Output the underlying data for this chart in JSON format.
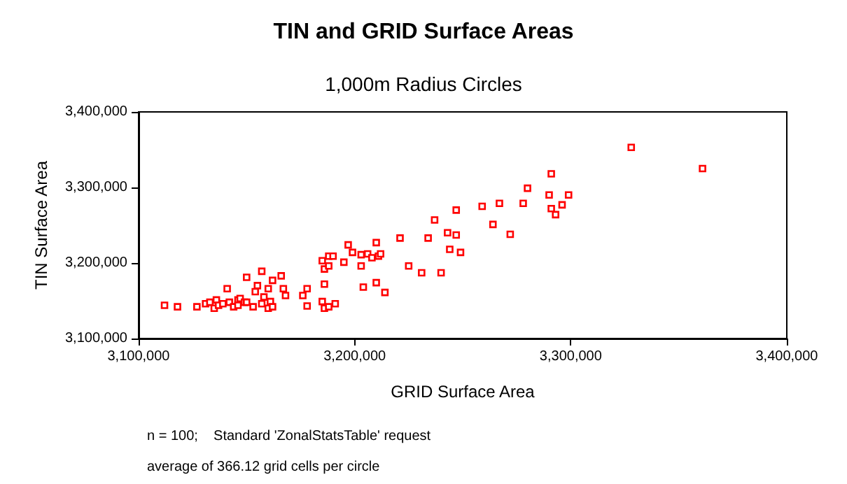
{
  "chart_data": {
    "type": "scatter",
    "title": "TIN and GRID Surface Areas",
    "subtitle": "1,000m Radius Circles",
    "xlabel": "GRID Surface Area",
    "ylabel": "TIN Surface Area",
    "annotations": [
      "n = 100;    Standard 'ZonalStatsTable' request",
      "average of 366.12 grid cells per circle"
    ],
    "xlim": [
      3100000,
      3400000
    ],
    "ylim": [
      3100000,
      3400000
    ],
    "xticks": [
      {
        "value": 3100000,
        "label": "3,100,000"
      },
      {
        "value": 3200000,
        "label": "3,200,000"
      },
      {
        "value": 3300000,
        "label": "3,300,000"
      },
      {
        "value": 3400000,
        "label": "3,400,000"
      }
    ],
    "yticks": [
      {
        "value": 3100000,
        "label": "3,100,000"
      },
      {
        "value": 3200000,
        "label": "3,200,000"
      },
      {
        "value": 3300000,
        "label": "3,300,000"
      },
      {
        "value": 3400000,
        "label": "3,400,000"
      }
    ],
    "grid": false,
    "marker": "square",
    "series": [
      {
        "color": "#ff0000",
        "x": [
          3112000,
          3118000,
          3127000,
          3131000,
          3133000,
          3135000,
          3136000,
          3137000,
          3139000,
          3141000,
          3142000,
          3144000,
          3146000,
          3146000,
          3147000,
          3149000,
          3150000,
          3150000,
          3153000,
          3154000,
          3155000,
          3157000,
          3157000,
          3158000,
          3160000,
          3161000,
          3160000,
          3162000,
          3162000,
          3166000,
          3167000,
          3168000,
          3176000,
          3178000,
          3178000,
          3185000,
          3186000,
          3188000,
          3191000,
          3186000,
          3185000,
          3186000,
          3188000,
          3188000,
          3190000,
          3195000,
          3197000,
          3199000,
          3203000,
          3203000,
          3204000,
          3206000,
          3208000,
          3210000,
          3210000,
          3211000,
          3212000,
          3214000,
          3221000,
          3225000,
          3231000,
          3234000,
          3237000,
          3240000,
          3243000,
          3244000,
          3247000,
          3247000,
          3249000,
          3259000,
          3264000,
          3267000,
          3272000,
          3278000,
          3280000,
          3290000,
          3291000,
          3291000,
          3293000,
          3296000,
          3299000,
          3328000,
          3361000
        ],
        "values": [
          3144000,
          3142000,
          3142000,
          3146000,
          3148000,
          3140000,
          3151000,
          3144000,
          3146000,
          3166000,
          3148000,
          3142000,
          3151000,
          3144000,
          3153000,
          3148000,
          3148000,
          3181000,
          3142000,
          3162000,
          3170000,
          3189000,
          3146000,
          3155000,
          3166000,
          3149000,
          3140000,
          3177000,
          3142000,
          3183000,
          3166000,
          3157000,
          3157000,
          3166000,
          3143000,
          3149000,
          3140000,
          3142000,
          3146000,
          3172000,
          3203000,
          3192000,
          3196000,
          3209000,
          3209000,
          3201000,
          3224000,
          3214000,
          3196000,
          3211000,
          3168000,
          3212000,
          3207000,
          3227000,
          3174000,
          3209000,
          3212000,
          3161000,
          3233000,
          3196000,
          3187000,
          3233000,
          3257000,
          3187000,
          3240000,
          3218000,
          3237000,
          3270000,
          3214000,
          3275000,
          3251000,
          3279000,
          3238000,
          3279000,
          3299000,
          3290000,
          3272000,
          3318000,
          3264000,
          3277000,
          3290000,
          3353000,
          3325000
        ]
      }
    ]
  }
}
